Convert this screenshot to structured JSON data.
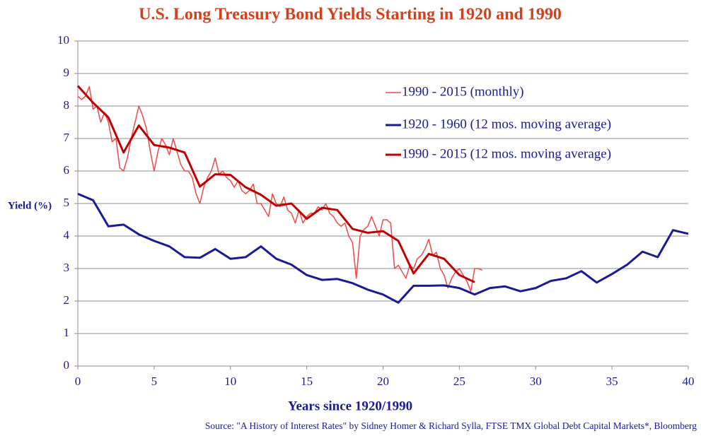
{
  "chart_data": {
    "type": "line",
    "title": "U.S. Long Treasury Bond Yields Starting in 1920 and 1990",
    "xlabel": "Years since 1920/1990",
    "ylabel": "Yield (%)",
    "source": "Source: \"A History of Interest Rates\" by Sidney Homer & Richard Sylla, FTSE TMX Global Debt Capital Markets*, Bloomberg",
    "xlim": [
      0,
      40
    ],
    "ylim": [
      0,
      10
    ],
    "xticks": [
      0,
      5,
      10,
      15,
      20,
      25,
      30,
      35,
      40
    ],
    "yticks": [
      0,
      1,
      2,
      3,
      4,
      5,
      6,
      7,
      8,
      9,
      10
    ],
    "grid": true,
    "legend": "upper right",
    "series": [
      {
        "name": "1990 - 2015 (monthly)",
        "color": "#f04848",
        "width": 1.5,
        "x": [
          0,
          0.25,
          0.5,
          0.75,
          1,
          1.25,
          1.5,
          1.75,
          2,
          2.25,
          2.5,
          2.75,
          3,
          3.25,
          3.5,
          3.75,
          4,
          4.25,
          4.5,
          4.75,
          5,
          5.25,
          5.5,
          5.75,
          6,
          6.25,
          6.5,
          6.75,
          7,
          7.25,
          7.5,
          7.75,
          8,
          8.25,
          8.5,
          8.75,
          9,
          9.25,
          9.5,
          9.75,
          10,
          10.25,
          10.5,
          10.75,
          11,
          11.25,
          11.5,
          11.75,
          12,
          12.25,
          12.5,
          12.75,
          13,
          13.25,
          13.5,
          13.75,
          14,
          14.25,
          14.5,
          14.75,
          15,
          15.25,
          15.5,
          15.75,
          16,
          16.25,
          16.5,
          16.75,
          17,
          17.25,
          17.5,
          17.75,
          18,
          18.25,
          18.5,
          18.75,
          19,
          19.25,
          19.5,
          19.75,
          20,
          20.25,
          20.5,
          20.75,
          21,
          21.25,
          21.5,
          21.75,
          22,
          22.25,
          22.5,
          22.75,
          23,
          23.25,
          23.5,
          23.75,
          24,
          24.25,
          24.5,
          24.75,
          25,
          25.25,
          25.5,
          25.75,
          26,
          26.25,
          26.5
        ],
        "values": [
          8.3,
          8.2,
          8.3,
          8.6,
          7.9,
          8.0,
          7.5,
          7.8,
          7.5,
          6.9,
          7.0,
          6.1,
          6.0,
          6.4,
          7.0,
          7.5,
          8.0,
          7.7,
          7.3,
          6.6,
          6.0,
          6.6,
          7.0,
          6.8,
          6.5,
          7.0,
          6.6,
          6.2,
          6.0,
          6.0,
          5.8,
          5.3,
          5.0,
          5.5,
          5.8,
          6.0,
          6.4,
          5.9,
          6.0,
          5.8,
          5.7,
          5.5,
          5.7,
          5.4,
          5.3,
          5.4,
          5.6,
          5.0,
          5.0,
          4.8,
          4.6,
          5.3,
          5.0,
          4.9,
          5.2,
          4.8,
          4.7,
          4.4,
          4.8,
          4.4,
          4.6,
          4.7,
          4.7,
          4.9,
          4.8,
          5.0,
          4.7,
          4.6,
          4.4,
          4.3,
          4.4,
          4.0,
          3.8,
          2.7,
          4.0,
          4.2,
          4.3,
          4.6,
          4.3,
          4.0,
          4.5,
          4.5,
          4.4,
          3.0,
          3.1,
          2.9,
          2.7,
          3.1,
          3.0,
          3.3,
          3.4,
          3.6,
          3.9,
          3.4,
          3.5,
          3.0,
          2.8,
          2.4,
          2.7,
          2.9,
          3.0,
          2.8,
          2.6,
          2.3,
          3.0,
          3.0,
          2.95
        ]
      },
      {
        "name": "1920 - 1960 (12 mos. moving average)",
        "color": "#1a1a96",
        "width": 3,
        "x": [
          0,
          1,
          2,
          3,
          4,
          5,
          6,
          7,
          8,
          9,
          10,
          11,
          12,
          13,
          14,
          15,
          16,
          17,
          18,
          19,
          20,
          21,
          22,
          23,
          24,
          25,
          26,
          27,
          28,
          29,
          30,
          31,
          32,
          33,
          34,
          35,
          36,
          37,
          38,
          39,
          40
        ],
        "values": [
          5.3,
          5.1,
          4.3,
          4.35,
          4.05,
          3.85,
          3.68,
          3.35,
          3.33,
          3.6,
          3.3,
          3.35,
          3.68,
          3.3,
          3.12,
          2.8,
          2.65,
          2.68,
          2.55,
          2.35,
          2.2,
          1.95,
          2.47,
          2.47,
          2.48,
          2.4,
          2.2,
          2.4,
          2.45,
          2.3,
          2.4,
          2.62,
          2.7,
          2.92,
          2.57,
          2.83,
          3.12,
          3.52,
          3.35,
          4.18,
          4.07
        ]
      },
      {
        "name": "1990 - 2015 (12 mos. moving average)",
        "color": "#c00000",
        "width": 3,
        "x": [
          0,
          1,
          2,
          3,
          4,
          5,
          6,
          7,
          8,
          9,
          10,
          11,
          12,
          13,
          14,
          15,
          16,
          17,
          18,
          19,
          20,
          21,
          22,
          23,
          24,
          25,
          26
        ],
        "values": [
          8.62,
          8.1,
          7.65,
          6.57,
          7.4,
          6.8,
          6.72,
          6.57,
          5.52,
          5.9,
          5.88,
          5.5,
          5.27,
          4.93,
          5.0,
          4.53,
          4.87,
          4.8,
          4.22,
          4.1,
          4.15,
          3.85,
          2.85,
          3.45,
          3.3,
          2.8,
          2.58
        ]
      }
    ]
  }
}
